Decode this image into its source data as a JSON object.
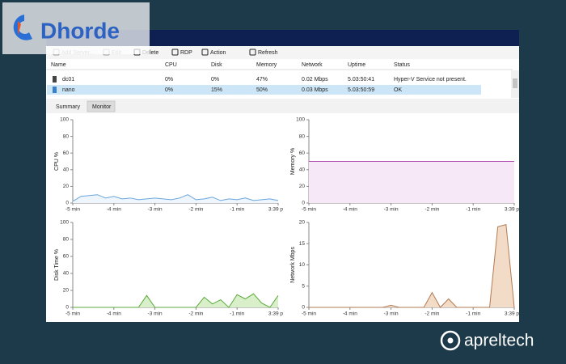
{
  "logos": {
    "top": "Dhorde",
    "bottom": "apreltech"
  },
  "toolbar": {
    "buttons": [
      {
        "label": "Add Server...",
        "disabled": true
      },
      {
        "label": "Edit",
        "disabled": true
      },
      {
        "label": "Delete",
        "disabled": false
      },
      {
        "label": "RDP",
        "disabled": false
      },
      {
        "label": "Action",
        "disabled": false
      },
      {
        "label": "Refresh",
        "disabled": false
      }
    ]
  },
  "table": {
    "columns": [
      "Name",
      "CPU",
      "Disk",
      "Memory",
      "Network",
      "Uptime",
      "Status"
    ],
    "rows": [
      {
        "cells": [
          "dc01",
          "0%",
          "0%",
          "47%",
          "0.02 Mbps",
          "5.03:50:41",
          "Hyper-V Service not present."
        ],
        "selected": false
      },
      {
        "cells": [
          "nano",
          "0%",
          "15%",
          "50%",
          "0.03 Mbps",
          "5.03:50:59",
          "OK"
        ],
        "selected": true
      }
    ]
  },
  "tabs": [
    {
      "label": "Summary",
      "selected": false
    },
    {
      "label": "Monitor",
      "selected": true
    }
  ],
  "chart_data": [
    {
      "type": "line",
      "ylabel": "CPU %",
      "color": "#6aa6dc",
      "fill": "#eef5fc",
      "x": [
        -5,
        -4.8,
        -4.6,
        -4.4,
        -4.2,
        -4,
        -3.8,
        -3.6,
        -3.4,
        -3.2,
        -3,
        -2.8,
        -2.6,
        -2.4,
        -2.2,
        -2,
        -1.8,
        -1.6,
        -1.4,
        -1.2,
        -1,
        -0.8,
        -0.6,
        -0.4,
        -0.2,
        0
      ],
      "values": [
        2,
        8,
        9,
        10,
        6,
        8,
        5,
        6,
        4,
        5,
        6,
        5,
        4,
        6,
        10,
        4,
        5,
        7,
        3,
        5,
        4,
        6,
        3,
        4,
        5,
        3
      ],
      "xlim": [
        -5,
        0
      ],
      "ylim": [
        0,
        100
      ],
      "yticks": [
        0,
        20,
        40,
        60,
        80,
        100
      ],
      "xticks": [
        {
          "value": -5,
          "label": "-5 min"
        },
        {
          "value": -4,
          "label": "-4 min"
        },
        {
          "value": -3,
          "label": "-3 min"
        },
        {
          "value": -2,
          "label": "-2 min"
        },
        {
          "value": -1,
          "label": "-1 min"
        },
        {
          "value": 0,
          "label": "3:39 p"
        }
      ]
    },
    {
      "type": "area",
      "ylabel": "Memory %",
      "color": "#b04ab0",
      "fill": "#f6e8f6",
      "x": [
        -5,
        -4.8,
        -4.6,
        -4.4,
        -4.2,
        -4,
        -3.8,
        -3.6,
        -3.4,
        -3.2,
        -3,
        -2.8,
        -2.6,
        -2.4,
        -2.2,
        -2,
        -1.8,
        -1.6,
        -1.4,
        -1.2,
        -1,
        -0.8,
        -0.6,
        -0.4,
        -0.2,
        0
      ],
      "values": [
        50,
        50,
        50,
        50,
        50,
        50,
        50,
        50,
        50,
        50,
        50,
        50,
        50,
        50,
        50,
        50,
        50,
        50,
        50,
        50,
        50,
        50,
        50,
        50,
        50,
        50
      ],
      "xlim": [
        -5,
        0
      ],
      "ylim": [
        0,
        100
      ],
      "yticks": [
        0,
        20,
        40,
        60,
        80,
        100
      ],
      "xticks": [
        {
          "value": -5,
          "label": "-5 min"
        },
        {
          "value": -4,
          "label": "-4 min"
        },
        {
          "value": -3,
          "label": "-3 min"
        },
        {
          "value": -2,
          "label": "-2 min"
        },
        {
          "value": -1,
          "label": "-1 min"
        },
        {
          "value": 0,
          "label": "3:39 p"
        }
      ]
    },
    {
      "type": "area",
      "ylabel": "Disk Time %",
      "color": "#5aaa3a",
      "fill": "#d8efca",
      "x": [
        -5,
        -4.8,
        -4.6,
        -4.4,
        -4.2,
        -4,
        -3.8,
        -3.6,
        -3.4,
        -3.2,
        -3,
        -2.8,
        -2.6,
        -2.4,
        -2.2,
        -2,
        -1.8,
        -1.6,
        -1.4,
        -1.2,
        -1,
        -0.8,
        -0.6,
        -0.4,
        -0.2,
        0
      ],
      "values": [
        0,
        0,
        0,
        0,
        0,
        0,
        0,
        0,
        0,
        14,
        0,
        0,
        0,
        0,
        0,
        0,
        12,
        4,
        9,
        0,
        15,
        10,
        16,
        5,
        0,
        14
      ],
      "xlim": [
        -5,
        0
      ],
      "ylim": [
        0,
        100
      ],
      "yticks": [
        0,
        20,
        40,
        60,
        80,
        100
      ],
      "xticks": [
        {
          "value": -5,
          "label": "-5 min"
        },
        {
          "value": -4,
          "label": "-4 min"
        },
        {
          "value": -3,
          "label": "-3 min"
        },
        {
          "value": -2,
          "label": "-2 min"
        },
        {
          "value": -1,
          "label": "-1 min"
        },
        {
          "value": 0,
          "label": "3:39 p"
        }
      ]
    },
    {
      "type": "area",
      "ylabel": "Network Mbps",
      "color": "#b07a52",
      "fill": "#f2dcc8",
      "x": [
        -5,
        -4.8,
        -4.6,
        -4.4,
        -4.2,
        -4,
        -3.8,
        -3.6,
        -3.4,
        -3.2,
        -3,
        -2.8,
        -2.6,
        -2.4,
        -2.2,
        -2,
        -1.8,
        -1.6,
        -1.4,
        -1.2,
        -1,
        -0.8,
        -0.6,
        -0.4,
        -0.2,
        0
      ],
      "values": [
        0,
        0,
        0,
        0,
        0,
        0,
        0,
        0,
        0,
        0,
        0.5,
        0,
        0,
        0,
        0,
        3.5,
        0,
        2,
        0,
        0,
        0,
        0,
        0,
        19,
        19.5,
        0
      ],
      "xlim": [
        -5,
        0
      ],
      "ylim": [
        0,
        20
      ],
      "yticks": [
        0,
        5,
        10,
        15,
        20
      ],
      "xticks": [
        {
          "value": -5,
          "label": "-5 min"
        },
        {
          "value": -4,
          "label": "-4 min"
        },
        {
          "value": -3,
          "label": "-3 min"
        },
        {
          "value": -2,
          "label": "-2 min"
        },
        {
          "value": -1,
          "label": "-1 min"
        },
        {
          "value": 0,
          "label": "3:39 p"
        }
      ]
    }
  ]
}
